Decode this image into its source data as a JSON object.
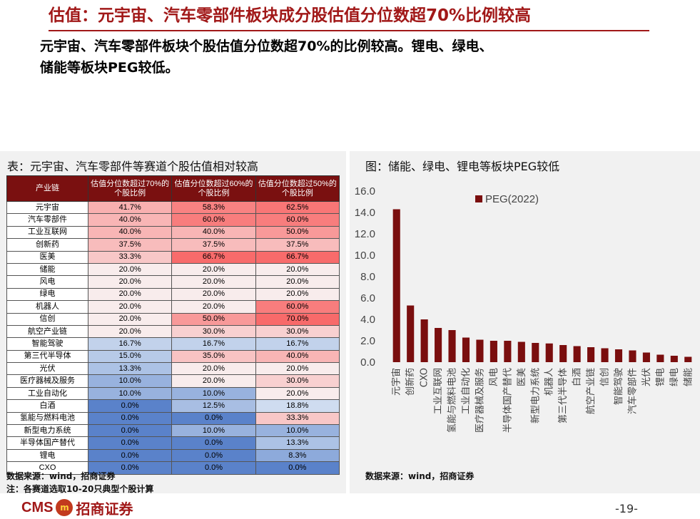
{
  "header": {
    "title": "估值：元宇宙、汽车零部件板块成分股估值分位数超70%比例较高",
    "lead_line1": "元宇宙、汽车零部件板块个股估值分位数超70%的比例较高。锂电、绿电、",
    "lead_line2": "储能等板块PEG较低。"
  },
  "table": {
    "caption": "表：元宇宙、汽车零部件等赛道个股估值相对较高",
    "headers": [
      "产业链",
      "估值分位数超过70%的个股比例",
      "估值分位数超过60%的个股比例",
      "估值分位数超过50%的个股比例"
    ],
    "rows": [
      [
        "元宇宙",
        "41.7%",
        "58.3%",
        "62.5%"
      ],
      [
        "汽车零部件",
        "40.0%",
        "60.0%",
        "60.0%"
      ],
      [
        "工业互联网",
        "40.0%",
        "40.0%",
        "50.0%"
      ],
      [
        "创新药",
        "37.5%",
        "37.5%",
        "37.5%"
      ],
      [
        "医美",
        "33.3%",
        "66.7%",
        "66.7%"
      ],
      [
        "储能",
        "20.0%",
        "20.0%",
        "20.0%"
      ],
      [
        "风电",
        "20.0%",
        "20.0%",
        "20.0%"
      ],
      [
        "绿电",
        "20.0%",
        "20.0%",
        "20.0%"
      ],
      [
        "机器人",
        "20.0%",
        "20.0%",
        "60.0%"
      ],
      [
        "信创",
        "20.0%",
        "50.0%",
        "70.0%"
      ],
      [
        "航空产业链",
        "20.0%",
        "30.0%",
        "30.0%"
      ],
      [
        "智能驾驶",
        "16.7%",
        "16.7%",
        "16.7%"
      ],
      [
        "第三代半导体",
        "15.0%",
        "35.0%",
        "40.0%"
      ],
      [
        "光伏",
        "13.3%",
        "20.0%",
        "20.0%"
      ],
      [
        "医疗器械及服务",
        "10.0%",
        "20.0%",
        "30.0%"
      ],
      [
        "工业自动化",
        "10.0%",
        "10.0%",
        "20.0%"
      ],
      [
        "白酒",
        "0.0%",
        "12.5%",
        "18.8%"
      ],
      [
        "氢能与燃料电池",
        "0.0%",
        "0.0%",
        "33.3%"
      ],
      [
        "新型电力系统",
        "0.0%",
        "10.0%",
        "10.0%"
      ],
      [
        "半导体国产替代",
        "0.0%",
        "0.0%",
        "13.3%"
      ],
      [
        "锂电",
        "0.0%",
        "0.0%",
        "8.3%"
      ],
      [
        "CXO",
        "0.0%",
        "0.0%",
        "0.0%"
      ]
    ],
    "source": "数据来源：wind，招商证券",
    "note": "注：各赛道选取10-20只典型个股计算"
  },
  "chart": {
    "caption": "图：储能、绿电、锂电等板块PEG较低",
    "source": "数据来源：wind，招商证券"
  },
  "chart_data": {
    "type": "bar",
    "title": "",
    "xlabel": "",
    "ylabel": "",
    "ylim": [
      0,
      16
    ],
    "yticks": [
      "0.0",
      "2.0",
      "4.0",
      "6.0",
      "8.0",
      "10.0",
      "12.0",
      "14.0",
      "16.0"
    ],
    "grid": false,
    "legend_position": "top-left",
    "bar_color": "#7a0e0e",
    "categories": [
      "元宇宙",
      "创新药",
      "CXO",
      "工业互联网",
      "氢能与燃料电池",
      "工业自动化",
      "医疗器械及服务",
      "风电",
      "半导体国产替代",
      "医美",
      "新型电力系统",
      "机器人",
      "第三代半导体",
      "白酒",
      "航空产业链",
      "信创",
      "智能驾驶",
      "汽车零部件",
      "光伏",
      "锂电",
      "绿电",
      "储能"
    ],
    "series": [
      {
        "name": "PEG(2022)",
        "values": [
          14.3,
          5.3,
          4.0,
          3.2,
          3.0,
          2.3,
          2.1,
          2.0,
          2.0,
          1.9,
          1.8,
          1.75,
          1.6,
          1.5,
          1.4,
          1.3,
          1.2,
          1.1,
          0.9,
          0.7,
          0.6,
          0.5
        ]
      }
    ]
  },
  "footer": {
    "logo_cms": "CMS",
    "logo_mark": "m",
    "logo_cn": "招商证券",
    "page_number": "-19-"
  }
}
